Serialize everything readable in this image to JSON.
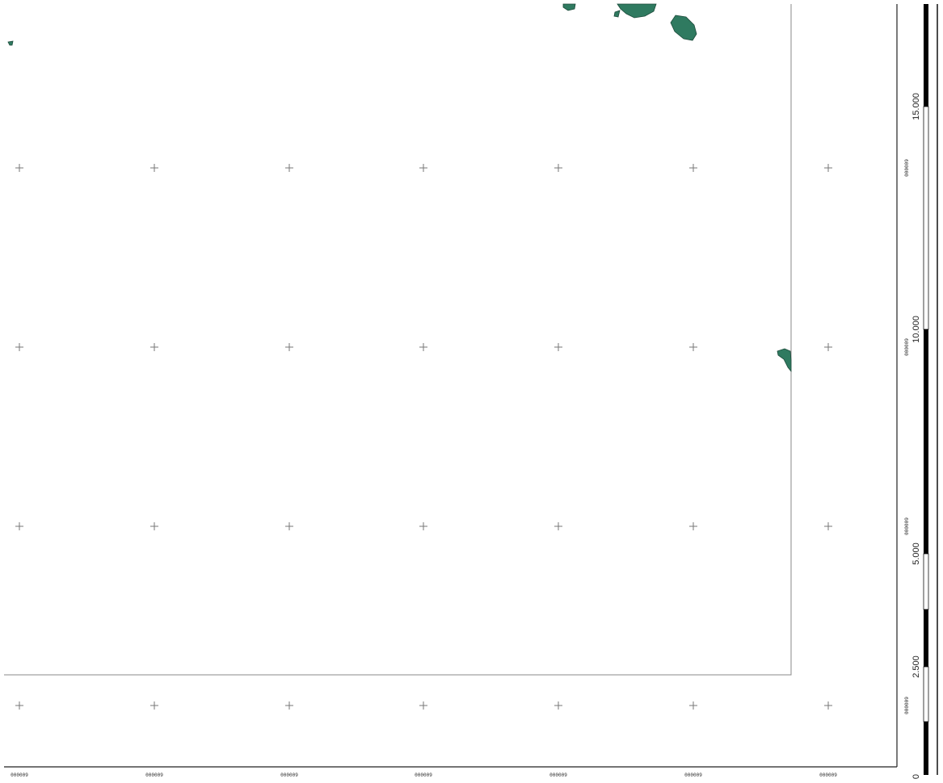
{
  "map": {
    "grid_x_labels": [
      "000009",
      "000009",
      "000009",
      "000009",
      "000009",
      "000009",
      "000009"
    ],
    "grid_y_labels": [
      "000009",
      "000009",
      "000009",
      "000009"
    ],
    "feature_color": "#2f7a60",
    "feature_edge_color": "#1c4a3a",
    "grid_color": "#777777",
    "frame_color": "#777777"
  },
  "scale_bar": {
    "labels": [
      "0",
      "2.500",
      "5.000",
      "10.000",
      "15.000"
    ],
    "fill_color": "#000000"
  }
}
